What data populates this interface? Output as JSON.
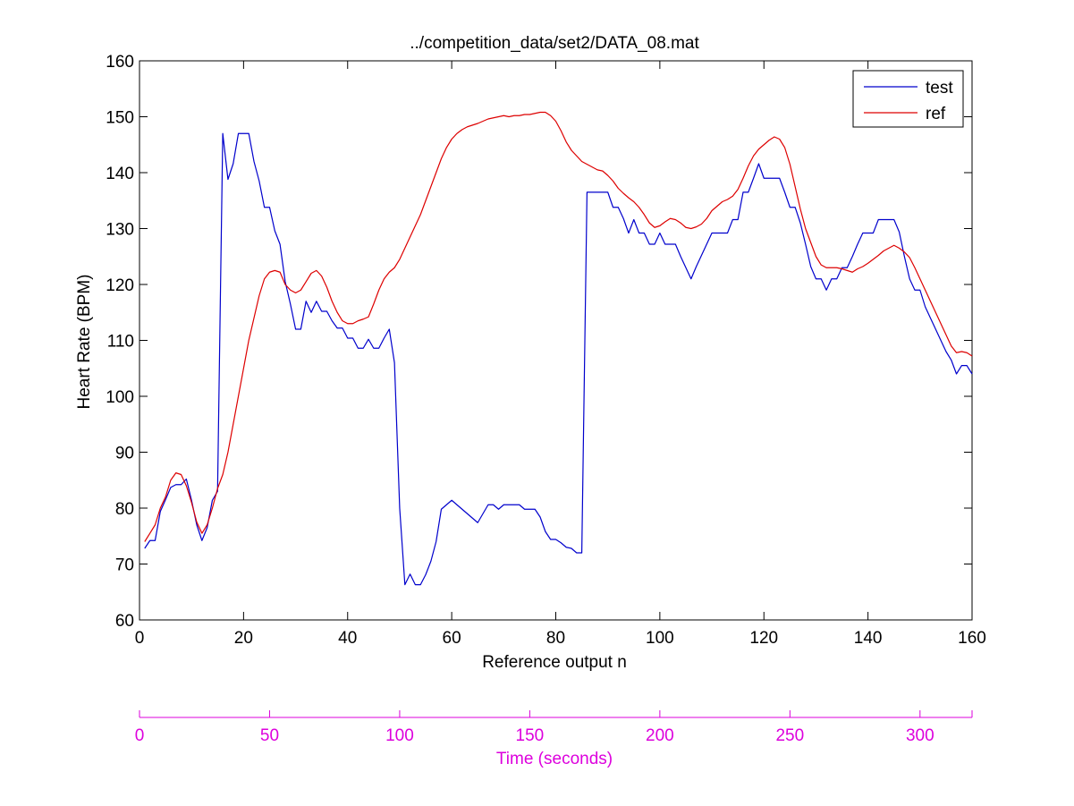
{
  "chart_data": {
    "type": "line",
    "title": "../competition_data/set2/DATA_08.mat",
    "xlabel": "Reference output n",
    "ylabel": "Heart Rate (BPM)",
    "xlim": [
      0,
      160
    ],
    "ylim": [
      60,
      160
    ],
    "xticks": [
      0,
      20,
      40,
      60,
      80,
      100,
      120,
      140,
      160
    ],
    "yticks": [
      60,
      70,
      80,
      90,
      100,
      110,
      120,
      130,
      140,
      150,
      160
    ],
    "grid": false,
    "legend": "top-right",
    "series": [
      {
        "name": "test",
        "color": "#0000cc",
        "points": [
          [
            1,
            72.8
          ],
          [
            2,
            74.2
          ],
          [
            3,
            74.2
          ],
          [
            4,
            79.4
          ],
          [
            5,
            81.5
          ],
          [
            6,
            83.7
          ],
          [
            7,
            84.2
          ],
          [
            8,
            84.2
          ],
          [
            9,
            85.2
          ],
          [
            10,
            81.4
          ],
          [
            11,
            77.0
          ],
          [
            12,
            74.2
          ],
          [
            13,
            76.5
          ],
          [
            14,
            81.4
          ],
          [
            15,
            83.0
          ],
          [
            16,
            147.0
          ],
          [
            17,
            138.8
          ],
          [
            18,
            141.6
          ],
          [
            19,
            147.0
          ],
          [
            20,
            147.0
          ],
          [
            21,
            147.0
          ],
          [
            22,
            142.0
          ],
          [
            23,
            138.5
          ],
          [
            24,
            133.8
          ],
          [
            25,
            133.8
          ],
          [
            26,
            129.6
          ],
          [
            27,
            127.2
          ],
          [
            28,
            120.5
          ],
          [
            29,
            116.5
          ],
          [
            30,
            112.0
          ],
          [
            31,
            112.0
          ],
          [
            32,
            117.0
          ],
          [
            33,
            115.0
          ],
          [
            34,
            117.0
          ],
          [
            35,
            115.2
          ],
          [
            36,
            115.2
          ],
          [
            37,
            113.5
          ],
          [
            38,
            112.2
          ],
          [
            39,
            112.2
          ],
          [
            40,
            110.4
          ],
          [
            41,
            110.4
          ],
          [
            42,
            108.6
          ],
          [
            43,
            108.6
          ],
          [
            44,
            110.2
          ],
          [
            45,
            108.6
          ],
          [
            46,
            108.6
          ],
          [
            47,
            110.4
          ],
          [
            48,
            112.0
          ],
          [
            49,
            106.0
          ],
          [
            50,
            80.0
          ],
          [
            51,
            66.3
          ],
          [
            52,
            68.2
          ],
          [
            53,
            66.3
          ],
          [
            54,
            66.3
          ],
          [
            55,
            68.1
          ],
          [
            56,
            70.5
          ],
          [
            57,
            74.0
          ],
          [
            58,
            79.8
          ],
          [
            59,
            80.6
          ],
          [
            60,
            81.4
          ],
          [
            61,
            80.6
          ],
          [
            62,
            79.8
          ],
          [
            63,
            79.0
          ],
          [
            64,
            78.2
          ],
          [
            65,
            77.4
          ],
          [
            66,
            79.0
          ],
          [
            67,
            80.6
          ],
          [
            68,
            80.6
          ],
          [
            69,
            79.8
          ],
          [
            70,
            80.6
          ],
          [
            71,
            80.6
          ],
          [
            72,
            80.6
          ],
          [
            73,
            80.6
          ],
          [
            74,
            79.8
          ],
          [
            75,
            79.8
          ],
          [
            76,
            79.8
          ],
          [
            77,
            78.4
          ],
          [
            78,
            75.8
          ],
          [
            79,
            74.4
          ],
          [
            80,
            74.4
          ],
          [
            81,
            73.8
          ],
          [
            82,
            73.0
          ],
          [
            83,
            72.8
          ],
          [
            84,
            72.0
          ],
          [
            85,
            72.0
          ],
          [
            86,
            136.5
          ],
          [
            87,
            136.5
          ],
          [
            88,
            136.5
          ],
          [
            89,
            136.5
          ],
          [
            90,
            136.5
          ],
          [
            91,
            133.8
          ],
          [
            92,
            133.8
          ],
          [
            93,
            131.8
          ],
          [
            94,
            129.2
          ],
          [
            95,
            131.6
          ],
          [
            96,
            129.2
          ],
          [
            97,
            129.2
          ],
          [
            98,
            127.2
          ],
          [
            99,
            127.2
          ],
          [
            100,
            129.2
          ],
          [
            101,
            127.2
          ],
          [
            102,
            127.2
          ],
          [
            103,
            127.2
          ],
          [
            104,
            125.0
          ],
          [
            105,
            123.0
          ],
          [
            106,
            121.0
          ],
          [
            107,
            123.2
          ],
          [
            108,
            125.2
          ],
          [
            109,
            127.2
          ],
          [
            110,
            129.2
          ],
          [
            111,
            129.2
          ],
          [
            112,
            129.2
          ],
          [
            113,
            129.2
          ],
          [
            114,
            131.6
          ],
          [
            115,
            131.6
          ],
          [
            116,
            136.5
          ],
          [
            117,
            136.5
          ],
          [
            118,
            139.0
          ],
          [
            119,
            141.6
          ],
          [
            120,
            139.0
          ],
          [
            121,
            139.0
          ],
          [
            122,
            139.0
          ],
          [
            123,
            139.0
          ],
          [
            124,
            136.5
          ],
          [
            125,
            133.8
          ],
          [
            126,
            133.8
          ],
          [
            127,
            131.0
          ],
          [
            128,
            127.2
          ],
          [
            129,
            123.2
          ],
          [
            130,
            121.0
          ],
          [
            131,
            121.0
          ],
          [
            132,
            119.0
          ],
          [
            133,
            121.0
          ],
          [
            134,
            121.0
          ],
          [
            135,
            123.0
          ],
          [
            136,
            123.0
          ],
          [
            137,
            125.0
          ],
          [
            138,
            127.2
          ],
          [
            139,
            129.2
          ],
          [
            140,
            129.2
          ],
          [
            141,
            129.2
          ],
          [
            142,
            131.6
          ],
          [
            143,
            131.6
          ],
          [
            144,
            131.6
          ],
          [
            145,
            131.6
          ],
          [
            146,
            129.4
          ],
          [
            147,
            125.0
          ],
          [
            148,
            121.0
          ],
          [
            149,
            119.0
          ],
          [
            150,
            119.0
          ],
          [
            151,
            116.0
          ],
          [
            152,
            114.0
          ],
          [
            153,
            112.0
          ],
          [
            154,
            110.0
          ],
          [
            155,
            108.0
          ],
          [
            156,
            106.5
          ],
          [
            157,
            104.0
          ],
          [
            158,
            105.5
          ],
          [
            159,
            105.5
          ],
          [
            160,
            104.0
          ]
        ]
      },
      {
        "name": "ref",
        "color": "#dd0000",
        "points": [
          [
            1,
            74.0
          ],
          [
            2,
            75.5
          ],
          [
            3,
            77.0
          ],
          [
            4,
            80.0
          ],
          [
            5,
            82.0
          ],
          [
            6,
            85.0
          ],
          [
            7,
            86.3
          ],
          [
            8,
            86.0
          ],
          [
            9,
            84.0
          ],
          [
            10,
            81.0
          ],
          [
            11,
            77.5
          ],
          [
            12,
            75.5
          ],
          [
            13,
            77.0
          ],
          [
            14,
            80.0
          ],
          [
            15,
            83.5
          ],
          [
            16,
            86.0
          ],
          [
            17,
            90.0
          ],
          [
            18,
            95.0
          ],
          [
            19,
            100.0
          ],
          [
            20,
            105.0
          ],
          [
            21,
            110.0
          ],
          [
            22,
            114.0
          ],
          [
            23,
            118.0
          ],
          [
            24,
            121.0
          ],
          [
            25,
            122.2
          ],
          [
            26,
            122.5
          ],
          [
            27,
            122.2
          ],
          [
            28,
            120.0
          ],
          [
            29,
            119.0
          ],
          [
            30,
            118.5
          ],
          [
            31,
            119.0
          ],
          [
            32,
            120.5
          ],
          [
            33,
            122.0
          ],
          [
            34,
            122.5
          ],
          [
            35,
            121.5
          ],
          [
            36,
            119.5
          ],
          [
            37,
            117.0
          ],
          [
            38,
            115.0
          ],
          [
            39,
            113.5
          ],
          [
            40,
            113.0
          ],
          [
            41,
            113.0
          ],
          [
            42,
            113.5
          ],
          [
            43,
            113.8
          ],
          [
            44,
            114.2
          ],
          [
            45,
            116.5
          ],
          [
            46,
            119.0
          ],
          [
            47,
            121.0
          ],
          [
            48,
            122.2
          ],
          [
            49,
            123.0
          ],
          [
            50,
            124.5
          ],
          [
            51,
            126.5
          ],
          [
            52,
            128.5
          ],
          [
            53,
            130.5
          ],
          [
            54,
            132.5
          ],
          [
            55,
            135.0
          ],
          [
            56,
            137.5
          ],
          [
            57,
            140.0
          ],
          [
            58,
            142.5
          ],
          [
            59,
            144.5
          ],
          [
            60,
            146.0
          ],
          [
            61,
            147.0
          ],
          [
            62,
            147.7
          ],
          [
            63,
            148.2
          ],
          [
            64,
            148.5
          ],
          [
            65,
            148.8
          ],
          [
            66,
            149.2
          ],
          [
            67,
            149.6
          ],
          [
            68,
            149.8
          ],
          [
            69,
            150.0
          ],
          [
            70,
            150.2
          ],
          [
            71,
            150.0
          ],
          [
            72,
            150.2
          ],
          [
            73,
            150.2
          ],
          [
            74,
            150.4
          ],
          [
            75,
            150.4
          ],
          [
            76,
            150.6
          ],
          [
            77,
            150.8
          ],
          [
            78,
            150.8
          ],
          [
            79,
            150.2
          ],
          [
            80,
            149.2
          ],
          [
            81,
            147.5
          ],
          [
            82,
            145.5
          ],
          [
            83,
            144.0
          ],
          [
            84,
            143.0
          ],
          [
            85,
            142.0
          ],
          [
            86,
            141.5
          ],
          [
            87,
            141.0
          ],
          [
            88,
            140.5
          ],
          [
            89,
            140.3
          ],
          [
            90,
            139.5
          ],
          [
            91,
            138.5
          ],
          [
            92,
            137.2
          ],
          [
            93,
            136.3
          ],
          [
            94,
            135.5
          ],
          [
            95,
            134.8
          ],
          [
            96,
            133.8
          ],
          [
            97,
            132.5
          ],
          [
            98,
            131.0
          ],
          [
            99,
            130.2
          ],
          [
            100,
            130.5
          ],
          [
            101,
            131.2
          ],
          [
            102,
            131.8
          ],
          [
            103,
            131.6
          ],
          [
            104,
            131.0
          ],
          [
            105,
            130.2
          ],
          [
            106,
            130.0
          ],
          [
            107,
            130.3
          ],
          [
            108,
            130.8
          ],
          [
            109,
            131.8
          ],
          [
            110,
            133.2
          ],
          [
            111,
            134.0
          ],
          [
            112,
            134.8
          ],
          [
            113,
            135.2
          ],
          [
            114,
            135.8
          ],
          [
            115,
            137.0
          ],
          [
            116,
            139.0
          ],
          [
            117,
            141.2
          ],
          [
            118,
            143.0
          ],
          [
            119,
            144.2
          ],
          [
            120,
            145.0
          ],
          [
            121,
            145.8
          ],
          [
            122,
            146.4
          ],
          [
            123,
            146.0
          ],
          [
            124,
            144.5
          ],
          [
            125,
            141.5
          ],
          [
            126,
            137.5
          ],
          [
            127,
            133.5
          ],
          [
            128,
            130.0
          ],
          [
            129,
            127.5
          ],
          [
            130,
            125.0
          ],
          [
            131,
            123.5
          ],
          [
            132,
            123.0
          ],
          [
            133,
            123.0
          ],
          [
            134,
            123.0
          ],
          [
            135,
            122.8
          ],
          [
            136,
            122.5
          ],
          [
            137,
            122.2
          ],
          [
            138,
            122.8
          ],
          [
            139,
            123.2
          ],
          [
            140,
            123.8
          ],
          [
            141,
            124.5
          ],
          [
            142,
            125.2
          ],
          [
            143,
            126.0
          ],
          [
            144,
            126.5
          ],
          [
            145,
            127.0
          ],
          [
            146,
            126.5
          ],
          [
            147,
            125.8
          ],
          [
            148,
            124.8
          ],
          [
            149,
            123.0
          ],
          [
            150,
            121.0
          ],
          [
            151,
            119.0
          ],
          [
            152,
            117.0
          ],
          [
            153,
            115.0
          ],
          [
            154,
            113.0
          ],
          [
            155,
            111.0
          ],
          [
            156,
            109.0
          ],
          [
            157,
            107.8
          ],
          [
            158,
            108.0
          ],
          [
            159,
            107.8
          ],
          [
            160,
            107.2
          ]
        ]
      }
    ],
    "time_axis": {
      "label": "Time (seconds)",
      "color": "#dd00dd",
      "xlim": [
        0,
        320
      ],
      "ticks": [
        0,
        50,
        100,
        150,
        200,
        250,
        300
      ]
    }
  }
}
